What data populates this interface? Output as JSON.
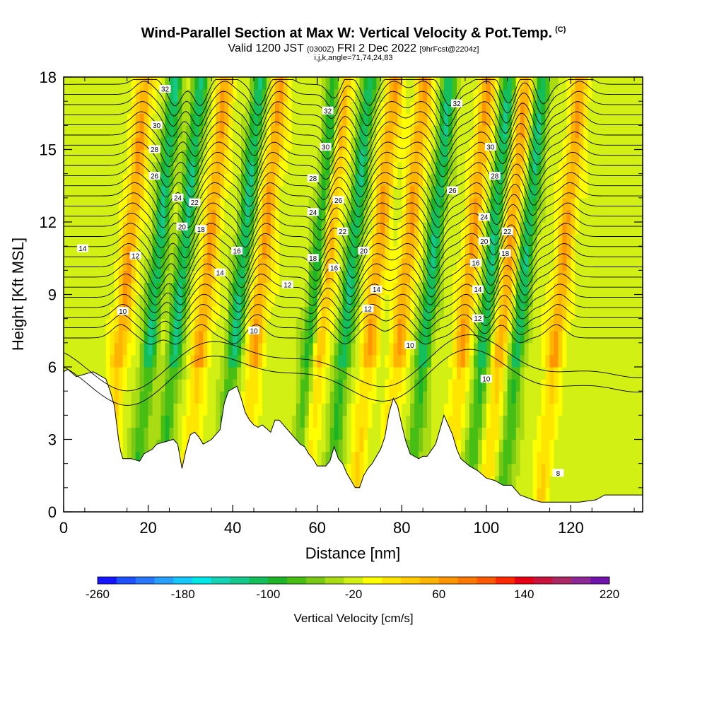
{
  "header": {
    "title": "Wind-Parallel Section at Max W: Vertical Velocity & Pot.Temp.",
    "title_mark": "(C)",
    "valid_prefix": "Valid 1200 JST",
    "valid_utc": "(0300Z)",
    "valid_date": "FRI 2 Dec 2022",
    "forecast": "[9hrFcst@2204z]",
    "indices": "i,j,k,angle=71,74,24,83"
  },
  "chart_data": {
    "type": "heatmap",
    "xlabel": "Distance [nm]",
    "ylabel": "Height [Kft MSL]",
    "xlim": [
      0,
      137
    ],
    "ylim": [
      0,
      18
    ],
    "x_ticks": [
      0,
      20,
      40,
      60,
      80,
      100,
      120
    ],
    "y_ticks": [
      0,
      3,
      6,
      9,
      12,
      15,
      18
    ],
    "field": "Vertical Velocity [cm/s]",
    "colorbar": {
      "title": "Vertical Velocity [cm/s]",
      "min": -260,
      "max": 220,
      "step": 20,
      "tick_labels": [
        "-260",
        "-180",
        "-100",
        "-20",
        "60",
        "140",
        "220"
      ],
      "colors": [
        "#1414ff",
        "#1e50ff",
        "#2878ff",
        "#28a0ff",
        "#14c8ff",
        "#00e6e6",
        "#14d2b4",
        "#14c88c",
        "#14be5a",
        "#1eb428",
        "#46be14",
        "#78c814",
        "#aadc14",
        "#d2f014",
        "#ffff00",
        "#ffe600",
        "#ffcd00",
        "#ffb400",
        "#ff9600",
        "#ff7800",
        "#ff5a00",
        "#ff2800",
        "#e60014",
        "#c8143c",
        "#aa2864",
        "#8c2896",
        "#6e14aa"
      ]
    },
    "updraft_bands_x": [
      14,
      33,
      46,
      61,
      73,
      80,
      95,
      104,
      117
    ],
    "downdraft_bands_x": [
      21,
      27,
      41,
      59,
      67,
      86,
      100,
      108
    ],
    "contour_labels": [
      {
        "value": "32",
        "x": 24,
        "y": 17.5
      },
      {
        "value": "30",
        "x": 22,
        "y": 16.0
      },
      {
        "value": "28",
        "x": 21.5,
        "y": 15.0
      },
      {
        "value": "26",
        "x": 21.5,
        "y": 13.9
      },
      {
        "value": "24",
        "x": 27,
        "y": 13.0
      },
      {
        "value": "22",
        "x": 31,
        "y": 12.8
      },
      {
        "value": "20",
        "x": 28,
        "y": 11.8
      },
      {
        "value": "18",
        "x": 32.5,
        "y": 11.7
      },
      {
        "value": "16",
        "x": 41,
        "y": 10.8
      },
      {
        "value": "14",
        "x": 37,
        "y": 9.9
      },
      {
        "value": "14",
        "x": 4.5,
        "y": 10.9
      },
      {
        "value": "12",
        "x": 17,
        "y": 10.6
      },
      {
        "value": "12",
        "x": 53,
        "y": 9.4
      },
      {
        "value": "10",
        "x": 14,
        "y": 8.3
      },
      {
        "value": "10",
        "x": 45,
        "y": 7.5
      },
      {
        "value": "32",
        "x": 62.5,
        "y": 16.6
      },
      {
        "value": "30",
        "x": 62,
        "y": 15.1
      },
      {
        "value": "28",
        "x": 59,
        "y": 13.8
      },
      {
        "value": "26",
        "x": 65,
        "y": 12.9
      },
      {
        "value": "24",
        "x": 59,
        "y": 12.4
      },
      {
        "value": "22",
        "x": 66,
        "y": 11.6
      },
      {
        "value": "20",
        "x": 71,
        "y": 10.8
      },
      {
        "value": "18",
        "x": 59,
        "y": 10.5
      },
      {
        "value": "16",
        "x": 64,
        "y": 10.1
      },
      {
        "value": "14",
        "x": 74,
        "y": 9.2
      },
      {
        "value": "12",
        "x": 72,
        "y": 8.4
      },
      {
        "value": "10",
        "x": 82,
        "y": 6.9
      },
      {
        "value": "32",
        "x": 93,
        "y": 16.9
      },
      {
        "value": "30",
        "x": 101,
        "y": 15.1
      },
      {
        "value": "28",
        "x": 102,
        "y": 13.9
      },
      {
        "value": "26",
        "x": 92,
        "y": 13.3
      },
      {
        "value": "24",
        "x": 99.5,
        "y": 12.2
      },
      {
        "value": "22",
        "x": 105,
        "y": 11.6
      },
      {
        "value": "20",
        "x": 99.5,
        "y": 11.2
      },
      {
        "value": "18",
        "x": 104.5,
        "y": 10.7
      },
      {
        "value": "16",
        "x": 97.5,
        "y": 10.3
      },
      {
        "value": "14",
        "x": 98,
        "y": 9.2
      },
      {
        "value": "12",
        "x": 98,
        "y": 8.0
      },
      {
        "value": "10",
        "x": 100,
        "y": 5.5
      },
      {
        "value": "8",
        "x": 117,
        "y": 1.6
      }
    ]
  }
}
